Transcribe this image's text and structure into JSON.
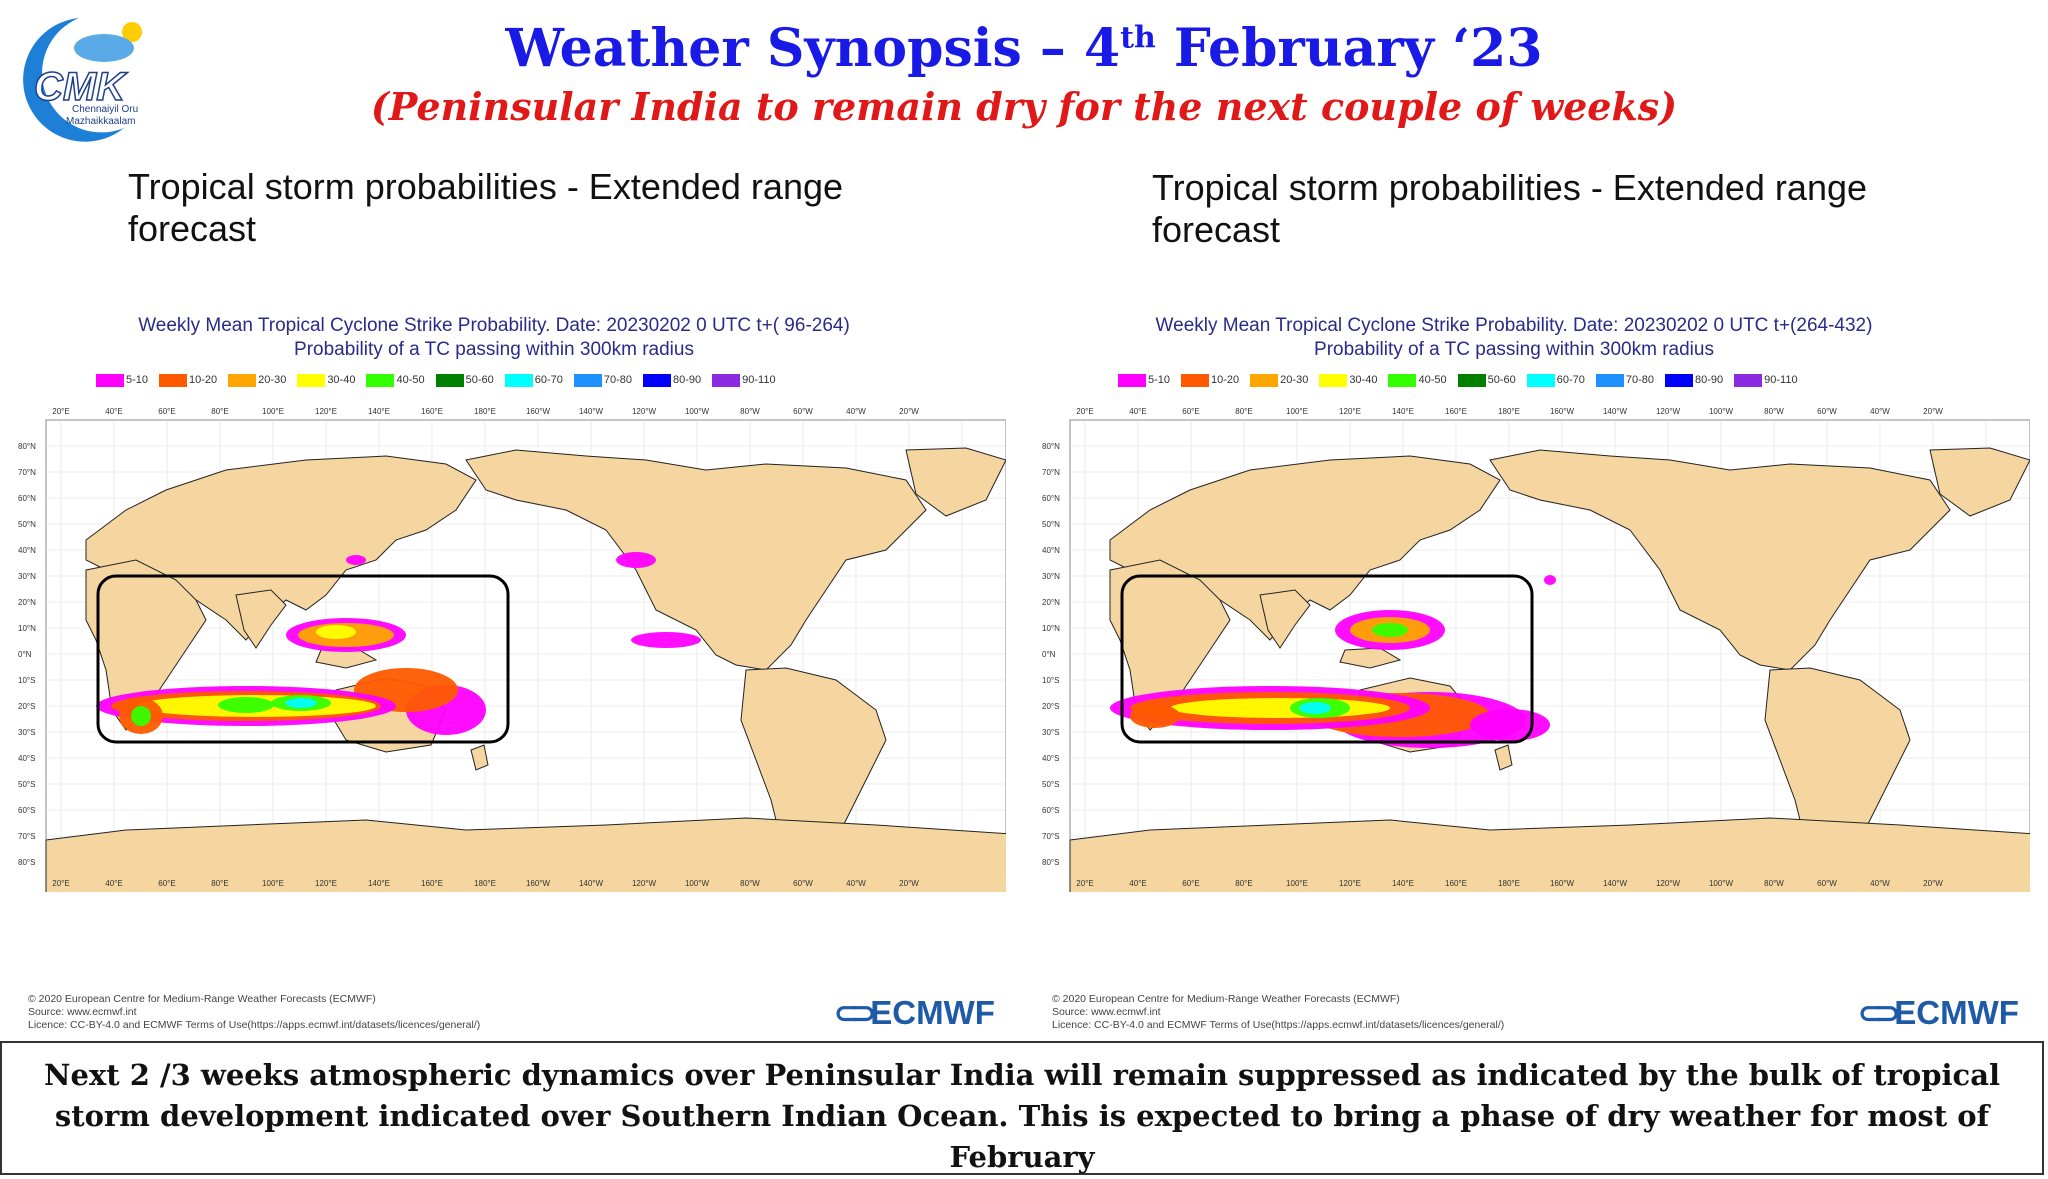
{
  "logo": {
    "text": "CMK",
    "caption_line1": "Chennaiyil Oru",
    "caption_line2": "Mazhaikkaalam"
  },
  "header": {
    "title_prefix": "Weather Synopsis – 4",
    "title_sup": "th",
    "title_suffix": " February ‘23",
    "subtitle": "(Peninsular India to remain dry for the next couple of weeks)"
  },
  "panels": [
    {
      "heading": "Tropical storm probabilities - Extended range forecast",
      "chart_title_line1": "Weekly Mean Tropical Cyclone Strike Probability. Date: 20230202  0 UTC    t+( 96-264)",
      "chart_title_line2": "Probability of a TC passing within  300km radius",
      "footer_line1": "© 2020 European Centre for Medium-Range Weather Forecasts (ECMWF)",
      "footer_line2": "Source: www.ecmwf.int",
      "footer_line3": "Licence: CC-BY-4.0 and ECMWF Terms of Use(https://apps.ecmwf.int/datasets/licences/general/)",
      "brand": "ECMWF"
    },
    {
      "heading": "Tropical storm probabilities - Extended range forecast",
      "chart_title_line1": "Weekly Mean Tropical Cyclone Strike Probability. Date: 20230202  0 UTC    t+(264-432)",
      "chart_title_line2": "Probability of a TC passing within  300km radius",
      "footer_line1": "© 2020 European Centre for Medium-Range Weather Forecasts (ECMWF)",
      "footer_line2": "Source: www.ecmwf.int",
      "footer_line3": "Licence: CC-BY-4.0 and ECMWF Terms of Use(https://apps.ecmwf.int/datasets/licences/general/)",
      "brand": "ECMWF"
    }
  ],
  "legend": [
    {
      "label": "5-10",
      "color": "#ff00ff"
    },
    {
      "label": "10-20",
      "color": "#ff5a00"
    },
    {
      "label": "20-30",
      "color": "#ffa500"
    },
    {
      "label": "30-40",
      "color": "#ffff00"
    },
    {
      "label": "40-50",
      "color": "#33ff00"
    },
    {
      "label": "50-60",
      "color": "#008000"
    },
    {
      "label": "60-70",
      "color": "#00ffff"
    },
    {
      "label": "70-80",
      "color": "#1e90ff"
    },
    {
      "label": "80-90",
      "color": "#0000ff"
    },
    {
      "label": "90-110",
      "color": "#8a2be2"
    }
  ],
  "map_axes": {
    "lon_labels": [
      "20°E",
      "40°E",
      "60°E",
      "80°E",
      "100°E",
      "120°E",
      "140°E",
      "160°E",
      "180°E",
      "160°W",
      "140°W",
      "120°W",
      "100°W",
      "80°W",
      "60°W",
      "40°W",
      "20°W"
    ],
    "lat_labels": [
      "80°N",
      "70°N",
      "60°N",
      "50°N",
      "40°N",
      "30°N",
      "20°N",
      "10°N",
      "0°N",
      "10°S",
      "20°S",
      "30°S",
      "40°S",
      "50°S",
      "60°S",
      "70°S",
      "80°S"
    ]
  },
  "colors": {
    "land": "#f5d5a0",
    "ocean": "#ffffff",
    "title_blue": "#1a1ae6",
    "subtitle_red": "#e01818"
  },
  "summary": "Next 2 /3 weeks atmospheric dynamics over Peninsular India will remain suppressed as indicated by the bulk of tropical storm development indicated over Southern Indian Ocean. This is expected to bring a phase of dry weather for most of February"
}
